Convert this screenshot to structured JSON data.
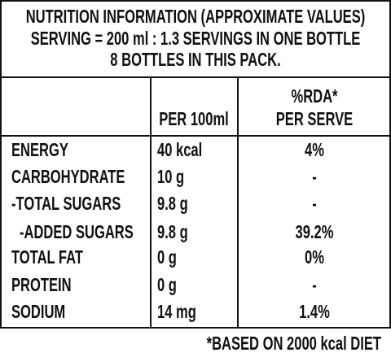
{
  "header": {
    "lines": [
      "NUTRITION INFORMATION (APPROXIMATE VALUES)",
      "SERVING = 200 ml : 1.3 SERVINGS IN ONE BOTTLE",
      "8 BOTTLES IN THIS PACK."
    ]
  },
  "table": {
    "columns": [
      {
        "lines": [
          "PER 100ml"
        ]
      },
      {
        "lines": [
          "%RDA*",
          "PER SERVE"
        ]
      }
    ],
    "rows": [
      [
        "ENERGY",
        "40 kcal",
        "4%"
      ],
      [
        "CARBOHYDRATE",
        "10 g",
        "-"
      ],
      [
        "-TOTAL SUGARS",
        "9.8 g",
        "-"
      ],
      [
        "-ADDED SUGARS",
        "9.8 g",
        "39.2%"
      ],
      [
        "TOTAL FAT",
        "0 g",
        "0%"
      ],
      [
        "PROTEIN",
        "0 g",
        "-"
      ],
      [
        "SODIUM",
        "14 mg",
        "1.4%"
      ]
    ]
  },
  "footer": {
    "text": "*BASED ON 2000 kcal DIET"
  }
}
